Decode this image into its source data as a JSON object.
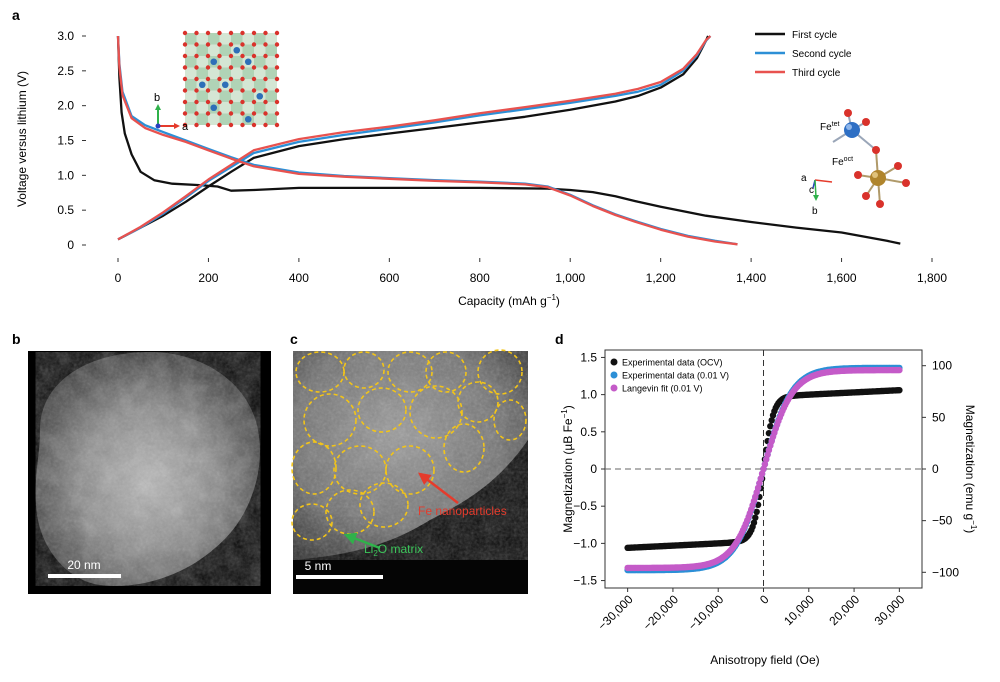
{
  "panels": {
    "a": {
      "letter": "a",
      "chart_data": {
        "type": "line",
        "xlabel": "Capacity (mAh g",
        "xlabel_sup": "−1",
        "xlabel_end": ")",
        "ylabel": "Voltage versus lithium (V)",
        "xlim": [
          0,
          1800
        ],
        "ylim": [
          0,
          3.1
        ],
        "x_ticks": [
          0,
          200,
          400,
          600,
          800,
          1000,
          1200,
          1400,
          1600,
          1800
        ],
        "x_tick_labels": [
          "0",
          "200",
          "400",
          "600",
          "800",
          "1,000",
          "1,200",
          "1,400",
          "1,600",
          "1,800"
        ],
        "y_ticks": [
          0,
          0.5,
          1.0,
          1.5,
          2.0,
          2.5,
          3.0
        ],
        "y_tick_labels": [
          "0",
          "0.5",
          "1.0",
          "1.5",
          "2.0",
          "2.5",
          "3.0"
        ],
        "legend_position": "top-right",
        "series": [
          {
            "name": "First cycle",
            "color": "#111111",
            "segments": [
              [
                [
                  0,
                  3.0
                ],
                [
                  3,
                  2.4
                ],
                [
                  8,
                  1.9
                ],
                [
                  15,
                  1.6
                ],
                [
                  30,
                  1.3
                ],
                [
                  50,
                  1.05
                ],
                [
                  80,
                  0.93
                ],
                [
                  120,
                  0.88
                ],
                [
                  180,
                  0.86
                ],
                [
                  220,
                  0.84
                ],
                [
                  250,
                  0.78
                ],
                [
                  300,
                  0.79
                ],
                [
                  400,
                  0.82
                ],
                [
                  600,
                  0.82
                ],
                [
                  800,
                  0.82
                ],
                [
                  950,
                  0.81
                ],
                [
                  1000,
                  0.79
                ],
                [
                  1050,
                  0.76
                ],
                [
                  1100,
                  0.7
                ],
                [
                  1150,
                  0.62
                ],
                [
                  1200,
                  0.55
                ],
                [
                  1300,
                  0.42
                ],
                [
                  1400,
                  0.33
                ],
                [
                  1500,
                  0.25
                ],
                [
                  1600,
                  0.18
                ],
                [
                  1700,
                  0.06
                ],
                [
                  1730,
                  0.02
                ]
              ],
              [
                [
                  0,
                  0.08
                ],
                [
                  50,
                  0.25
                ],
                [
                  100,
                  0.42
                ],
                [
                  150,
                  0.62
                ],
                [
                  200,
                  0.84
                ],
                [
                  250,
                  1.05
                ],
                [
                  300,
                  1.25
                ],
                [
                  400,
                  1.42
                ],
                [
                  500,
                  1.52
                ],
                [
                  600,
                  1.6
                ],
                [
                  700,
                  1.68
                ],
                [
                  800,
                  1.76
                ],
                [
                  900,
                  1.84
                ],
                [
                  1000,
                  1.94
                ],
                [
                  1100,
                  2.06
                ],
                [
                  1150,
                  2.14
                ],
                [
                  1200,
                  2.26
                ],
                [
                  1250,
                  2.45
                ],
                [
                  1280,
                  2.68
                ],
                [
                  1300,
                  2.93
                ],
                [
                  1305,
                  3.0
                ]
              ]
            ]
          },
          {
            "name": "Second cycle",
            "color": "#2c8fd6",
            "segments": [
              [
                [
                  0,
                  3.0
                ],
                [
                  3,
                  2.6
                ],
                [
                  10,
                  2.2
                ],
                [
                  30,
                  1.85
                ],
                [
                  60,
                  1.72
                ],
                [
                  100,
                  1.62
                ],
                [
                  150,
                  1.5
                ],
                [
                  200,
                  1.38
                ],
                [
                  250,
                  1.26
                ],
                [
                  300,
                  1.15
                ],
                [
                  400,
                  1.04
                ],
                [
                  500,
                  0.99
                ],
                [
                  600,
                  0.96
                ],
                [
                  700,
                  0.93
                ],
                [
                  800,
                  0.91
                ],
                [
                  900,
                  0.88
                ],
                [
                  950,
                  0.84
                ],
                [
                  1000,
                  0.72
                ],
                [
                  1050,
                  0.57
                ],
                [
                  1100,
                  0.44
                ],
                [
                  1150,
                  0.33
                ],
                [
                  1200,
                  0.23
                ],
                [
                  1260,
                  0.13
                ],
                [
                  1320,
                  0.06
                ],
                [
                  1370,
                  0.01
                ]
              ],
              [
                [
                  0,
                  0.08
                ],
                [
                  50,
                  0.25
                ],
                [
                  100,
                  0.45
                ],
                [
                  150,
                  0.68
                ],
                [
                  200,
                  0.92
                ],
                [
                  250,
                  1.12
                ],
                [
                  300,
                  1.32
                ],
                [
                  400,
                  1.48
                ],
                [
                  500,
                  1.58
                ],
                [
                  600,
                  1.67
                ],
                [
                  700,
                  1.76
                ],
                [
                  800,
                  1.86
                ],
                [
                  900,
                  1.95
                ],
                [
                  1000,
                  2.04
                ],
                [
                  1100,
                  2.14
                ],
                [
                  1150,
                  2.2
                ],
                [
                  1200,
                  2.3
                ],
                [
                  1250,
                  2.5
                ],
                [
                  1280,
                  2.72
                ],
                [
                  1300,
                  2.93
                ],
                [
                  1310,
                  3.0
                ]
              ]
            ]
          },
          {
            "name": "Third cycle",
            "color": "#e8524f",
            "segments": [
              [
                [
                  0,
                  3.0
                ],
                [
                  3,
                  2.55
                ],
                [
                  10,
                  2.15
                ],
                [
                  30,
                  1.82
                ],
                [
                  60,
                  1.68
                ],
                [
                  100,
                  1.58
                ],
                [
                  150,
                  1.48
                ],
                [
                  200,
                  1.36
                ],
                [
                  250,
                  1.24
                ],
                [
                  300,
                  1.13
                ],
                [
                  400,
                  1.02
                ],
                [
                  500,
                  0.98
                ],
                [
                  600,
                  0.95
                ],
                [
                  700,
                  0.92
                ],
                [
                  800,
                  0.9
                ],
                [
                  900,
                  0.87
                ],
                [
                  950,
                  0.83
                ],
                [
                  1000,
                  0.71
                ],
                [
                  1050,
                  0.56
                ],
                [
                  1100,
                  0.43
                ],
                [
                  1150,
                  0.32
                ],
                [
                  1200,
                  0.22
                ],
                [
                  1260,
                  0.12
                ],
                [
                  1320,
                  0.05
                ],
                [
                  1370,
                  0.01
                ]
              ],
              [
                [
                  0,
                  0.08
                ],
                [
                  50,
                  0.26
                ],
                [
                  100,
                  0.47
                ],
                [
                  150,
                  0.7
                ],
                [
                  200,
                  0.94
                ],
                [
                  250,
                  1.15
                ],
                [
                  300,
                  1.36
                ],
                [
                  400,
                  1.52
                ],
                [
                  500,
                  1.62
                ],
                [
                  600,
                  1.7
                ],
                [
                  700,
                  1.79
                ],
                [
                  800,
                  1.89
                ],
                [
                  900,
                  1.98
                ],
                [
                  1000,
                  2.07
                ],
                [
                  1100,
                  2.17
                ],
                [
                  1150,
                  2.24
                ],
                [
                  1200,
                  2.34
                ],
                [
                  1250,
                  2.53
                ],
                [
                  1280,
                  2.74
                ],
                [
                  1300,
                  2.94
                ],
                [
                  1310,
                  3.0
                ]
              ]
            ]
          }
        ],
        "annotations": {
          "axis_b": "b",
          "axis_a": "a",
          "fe_tet": "Fe",
          "fe_tet_sup": "tet",
          "fe_oct": "Fe",
          "fe_oct_sup": "oct",
          "struct_a": "a",
          "struct_c": "c",
          "struct_b": "b"
        }
      }
    },
    "b": {
      "letter": "b",
      "scale_label": "20 nm"
    },
    "c": {
      "letter": "c",
      "scale_label": "5 nm",
      "fe_label": "Fe nanoparticles",
      "li_label_main": "Li",
      "li_label_sub": "2",
      "li_label_end": "O matrix"
    },
    "d": {
      "letter": "d",
      "chart_data": {
        "type": "scatter",
        "xlabel": "Anisotropy field (Oe)",
        "ylabel_left": "Magnetization (µB Fe",
        "ylabel_left_sup": "−1",
        "ylabel_left_end": ")",
        "ylabel_right": "Magnetization (emu g",
        "ylabel_right_sup": "−1",
        "ylabel_right_end": ")",
        "xlim": [
          -35000,
          35000
        ],
        "ylim_left": [
          -1.6,
          1.6
        ],
        "x_ticks": [
          -30000,
          -20000,
          -10000,
          0,
          10000,
          20000,
          30000
        ],
        "x_tick_labels": [
          "−30,000",
          "−20,000",
          "−10,000",
          "0",
          "10,000",
          "20,000",
          "30,000"
        ],
        "y_left_ticks": [
          -1.5,
          -1.0,
          -0.5,
          0,
          0.5,
          1.0,
          1.5
        ],
        "y_left_tick_labels": [
          "−1.5",
          "−1.0",
          "−0.5",
          "0",
          "0.5",
          "1.0",
          "1.5"
        ],
        "y_right_ticks": [
          -100,
          -50,
          0,
          50,
          100
        ],
        "y_right_tick_labels": [
          "−100",
          "−50",
          "0",
          "50",
          "100"
        ],
        "legend_position": "top-left",
        "series": [
          {
            "name": "Experimental data (OCV)",
            "color": "#111111",
            "model": {
              "ms": 1.06,
              "steep": 0.00045,
              "ramp": 0.09
            }
          },
          {
            "name": "Experimental data (0.01 V)",
            "color": "#2c8fd6",
            "model": {
              "ms": 1.36,
              "steep": 0.00016,
              "ramp": 0.0
            }
          },
          {
            "name": "Langevin fit (0.01 V)",
            "color": "#c45bc8",
            "model": {
              "ms": 1.33,
              "steep": 0.00016,
              "ramp": 0.0
            }
          }
        ]
      }
    }
  }
}
